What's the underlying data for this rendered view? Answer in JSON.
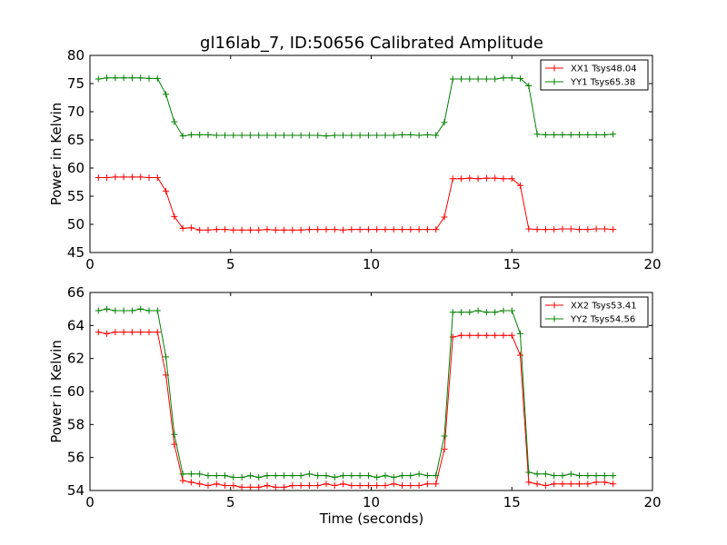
{
  "chart_data": [
    {
      "type": "line",
      "title": "gl16lab_7, ID:50656 Calibrated Amplitude",
      "xlabel": "",
      "ylabel": "Power in Kelvin",
      "xlim": [
        0,
        20
      ],
      "ylim": [
        45,
        80
      ],
      "xticks": [
        0,
        5,
        10,
        15,
        20
      ],
      "yticks": [
        45,
        50,
        55,
        60,
        65,
        70,
        75,
        80
      ],
      "legend_position": "top-right",
      "grid": false,
      "series": [
        {
          "name": "XX1 Tsys48.04",
          "color": "#ff0000",
          "x": [
            0.3,
            0.6,
            0.9,
            1.2,
            1.5,
            1.8,
            2.1,
            2.4,
            2.7,
            3.0,
            3.3,
            3.6,
            3.9,
            4.2,
            4.5,
            4.8,
            5.1,
            5.4,
            5.7,
            6.0,
            6.3,
            6.6,
            6.9,
            7.2,
            7.5,
            7.8,
            8.1,
            8.4,
            8.7,
            9.0,
            9.3,
            9.6,
            9.9,
            10.2,
            10.5,
            10.8,
            11.1,
            11.4,
            11.7,
            12.0,
            12.3,
            12.6,
            12.9,
            13.2,
            13.5,
            13.8,
            14.1,
            14.4,
            14.7,
            15.0,
            15.3,
            15.6,
            15.9,
            16.2,
            16.5,
            16.8,
            17.1,
            17.4,
            17.7,
            18.0,
            18.3,
            18.6
          ],
          "y": [
            58.3,
            58.3,
            58.4,
            58.4,
            58.4,
            58.4,
            58.3,
            58.3,
            55.9,
            51.4,
            49.3,
            49.4,
            49.0,
            49.0,
            49.1,
            49.1,
            49.0,
            49.0,
            49.0,
            49.0,
            49.1,
            49.0,
            49.0,
            49.0,
            49.0,
            49.1,
            49.1,
            49.1,
            49.1,
            49.0,
            49.1,
            49.1,
            49.1,
            49.1,
            49.1,
            49.1,
            49.1,
            49.1,
            49.1,
            49.1,
            49.1,
            51.3,
            58.1,
            58.1,
            58.2,
            58.1,
            58.2,
            58.2,
            58.1,
            58.1,
            56.9,
            49.2,
            49.1,
            49.1,
            49.1,
            49.2,
            49.2,
            49.1,
            49.1,
            49.2,
            49.2,
            49.1
          ]
        },
        {
          "name": "YY1 Tsys65.38",
          "color": "#008000",
          "x": [
            0.3,
            0.6,
            0.9,
            1.2,
            1.5,
            1.8,
            2.1,
            2.4,
            2.7,
            3.0,
            3.3,
            3.6,
            3.9,
            4.2,
            4.5,
            4.8,
            5.1,
            5.4,
            5.7,
            6.0,
            6.3,
            6.6,
            6.9,
            7.2,
            7.5,
            7.8,
            8.1,
            8.4,
            8.7,
            9.0,
            9.3,
            9.6,
            9.9,
            10.2,
            10.5,
            10.8,
            11.1,
            11.4,
            11.7,
            12.0,
            12.3,
            12.6,
            12.9,
            13.2,
            13.5,
            13.8,
            14.1,
            14.4,
            14.7,
            15.0,
            15.3,
            15.6,
            15.9,
            16.2,
            16.5,
            16.8,
            17.1,
            17.4,
            17.7,
            18.0,
            18.3,
            18.6
          ],
          "y": [
            75.8,
            76.0,
            76.0,
            76.0,
            76.0,
            76.0,
            75.9,
            75.9,
            73.1,
            68.2,
            65.7,
            65.9,
            65.9,
            65.9,
            65.8,
            65.8,
            65.8,
            65.8,
            65.8,
            65.8,
            65.8,
            65.8,
            65.8,
            65.8,
            65.8,
            65.8,
            65.8,
            65.7,
            65.8,
            65.8,
            65.8,
            65.8,
            65.8,
            65.8,
            65.8,
            65.8,
            65.9,
            65.9,
            65.8,
            65.9,
            65.8,
            68.1,
            75.8,
            75.8,
            75.8,
            75.8,
            75.8,
            75.8,
            76.0,
            76.0,
            75.9,
            74.6,
            66.0,
            65.9,
            65.9,
            65.9,
            65.9,
            65.9,
            65.9,
            65.9,
            65.9,
            66.0
          ]
        }
      ]
    },
    {
      "type": "line",
      "title": "",
      "xlabel": "Time (seconds)",
      "ylabel": "Power in Kelvin",
      "xlim": [
        0,
        20
      ],
      "ylim": [
        54,
        66
      ],
      "xticks": [
        0,
        5,
        10,
        15,
        20
      ],
      "yticks": [
        54,
        56,
        58,
        60,
        62,
        64,
        66
      ],
      "legend_position": "top-right",
      "grid": false,
      "series": [
        {
          "name": "XX2 Tsys53.41",
          "color": "#ff0000",
          "x": [
            0.3,
            0.6,
            0.9,
            1.2,
            1.5,
            1.8,
            2.1,
            2.4,
            2.7,
            3.0,
            3.3,
            3.6,
            3.9,
            4.2,
            4.5,
            4.8,
            5.1,
            5.4,
            5.7,
            6.0,
            6.3,
            6.6,
            6.9,
            7.2,
            7.5,
            7.8,
            8.1,
            8.4,
            8.7,
            9.0,
            9.3,
            9.6,
            9.9,
            10.2,
            10.5,
            10.8,
            11.1,
            11.4,
            11.7,
            12.0,
            12.3,
            12.6,
            12.9,
            13.2,
            13.5,
            13.8,
            14.1,
            14.4,
            14.7,
            15.0,
            15.3,
            15.6,
            15.9,
            16.2,
            16.5,
            16.8,
            17.1,
            17.4,
            17.7,
            18.0,
            18.3,
            18.6
          ],
          "y": [
            63.6,
            63.5,
            63.6,
            63.6,
            63.6,
            63.6,
            63.6,
            63.6,
            61.0,
            56.8,
            54.6,
            54.5,
            54.4,
            54.3,
            54.4,
            54.3,
            54.3,
            54.2,
            54.2,
            54.2,
            54.3,
            54.2,
            54.2,
            54.3,
            54.3,
            54.3,
            54.3,
            54.4,
            54.3,
            54.4,
            54.3,
            54.3,
            54.3,
            54.3,
            54.3,
            54.4,
            54.3,
            54.3,
            54.3,
            54.4,
            54.4,
            56.5,
            63.3,
            63.4,
            63.4,
            63.4,
            63.4,
            63.4,
            63.4,
            63.4,
            62.2,
            54.5,
            54.4,
            54.3,
            54.4,
            54.4,
            54.4,
            54.4,
            54.4,
            54.5,
            54.5,
            54.4
          ]
        },
        {
          "name": "YY2 Tsys54.56",
          "color": "#008000",
          "x": [
            0.3,
            0.6,
            0.9,
            1.2,
            1.5,
            1.8,
            2.1,
            2.4,
            2.7,
            3.0,
            3.3,
            3.6,
            3.9,
            4.2,
            4.5,
            4.8,
            5.1,
            5.4,
            5.7,
            6.0,
            6.3,
            6.6,
            6.9,
            7.2,
            7.5,
            7.8,
            8.1,
            8.4,
            8.7,
            9.0,
            9.3,
            9.6,
            9.9,
            10.2,
            10.5,
            10.8,
            11.1,
            11.4,
            11.7,
            12.0,
            12.3,
            12.6,
            12.9,
            13.2,
            13.5,
            13.8,
            14.1,
            14.4,
            14.7,
            15.0,
            15.3,
            15.6,
            15.9,
            16.2,
            16.5,
            16.8,
            17.1,
            17.4,
            17.7,
            18.0,
            18.3,
            18.6
          ],
          "y": [
            64.9,
            65.0,
            64.9,
            64.9,
            64.9,
            65.0,
            64.9,
            64.9,
            62.1,
            57.4,
            55.0,
            55.0,
            55.0,
            54.9,
            54.9,
            54.9,
            54.8,
            54.8,
            54.9,
            54.8,
            54.9,
            54.9,
            54.9,
            54.9,
            54.9,
            55.0,
            54.9,
            54.9,
            54.8,
            54.9,
            54.9,
            54.9,
            54.9,
            54.8,
            54.9,
            54.8,
            54.9,
            54.9,
            55.0,
            54.9,
            54.9,
            57.3,
            64.8,
            64.8,
            64.8,
            64.9,
            64.8,
            64.8,
            64.9,
            64.9,
            63.5,
            55.1,
            55.0,
            55.0,
            54.9,
            54.9,
            55.0,
            54.9,
            54.9,
            54.9,
            54.9,
            54.9
          ]
        }
      ]
    }
  ]
}
